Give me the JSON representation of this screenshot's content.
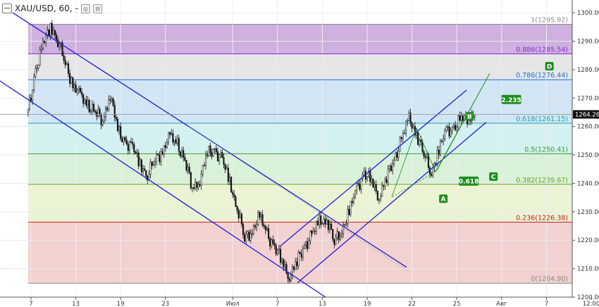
{
  "header": {
    "symbol": "XAU/USD, 60,",
    "dash": "-",
    "btn1": "◎",
    "btn2": "⊟"
  },
  "chart_data": {
    "type": "candlestick",
    "symbol": "XAU/USD",
    "timeframe": "60",
    "ylim": [
      1200,
      1302
    ],
    "y_ticks": [
      1200,
      1210,
      1220,
      1230,
      1240,
      1250,
      1260,
      1270,
      1280,
      1290,
      1300
    ],
    "x_ticks": [
      {
        "label": "7",
        "idx": 0
      },
      {
        "label": "13",
        "idx": 6
      },
      {
        "label": "19",
        "idx": 12
      },
      {
        "label": "23",
        "idx": 18
      },
      {
        "label": "Июл",
        "idx": 27
      },
      {
        "label": "7",
        "idx": 33
      },
      {
        "label": "13",
        "idx": 39
      },
      {
        "label": "19",
        "idx": 45
      },
      {
        "label": "22",
        "idx": 51
      },
      {
        "label": "25",
        "idx": 57
      },
      {
        "label": "Авг",
        "idx": 63
      },
      {
        "label": "7",
        "idx": 69
      },
      {
        "label": "12:00",
        "idx": 75
      }
    ],
    "current_price": "1264.26",
    "fib_levels": [
      {
        "label": "1(1295.92)",
        "value": 1295.92,
        "color": "#8a8a8a"
      },
      {
        "label": "0.886(1285.54)",
        "value": 1285.54,
        "color": "#8a2be2"
      },
      {
        "label": "0.786(1276.44)",
        "value": 1276.44,
        "color": "#1f6fd6"
      },
      {
        "label": "0.618(1261.15)",
        "value": 1261.15,
        "color": "#15a6b8"
      },
      {
        "label": "0.5(1250.41)",
        "value": 1250.41,
        "color": "#2fa12f"
      },
      {
        "label": "0.382(1239.67)",
        "value": 1239.67,
        "color": "#6aa31d"
      },
      {
        "label": "0.236(1226.38)",
        "value": 1226.38,
        "color": "#c81e1e"
      },
      {
        "label": "0(1204.90)",
        "value": 1204.9,
        "color": "#8a8a8a"
      }
    ],
    "fib_zones": [
      {
        "from": 1285.54,
        "to": 1295.92,
        "color": "#c6a3d9"
      },
      {
        "from": 1276.44,
        "to": 1285.54,
        "color": "#e2e2e2"
      },
      {
        "from": 1261.15,
        "to": 1276.44,
        "color": "#c9e1f2"
      },
      {
        "from": 1250.41,
        "to": 1261.15,
        "color": "#cdeeee"
      },
      {
        "from": 1239.67,
        "to": 1250.41,
        "color": "#d4efd2"
      },
      {
        "from": 1226.38,
        "to": 1239.67,
        "color": "#e6f2cc"
      },
      {
        "from": 1204.9,
        "to": 1226.38,
        "color": "#f1c9c9"
      }
    ],
    "wave_labels": [
      {
        "label": "A",
        "idx": 55.2,
        "price": 1234.6
      },
      {
        "label": "B",
        "idx": 58.7,
        "price": 1263.6
      },
      {
        "label": "C",
        "idx": 61.9,
        "price": 1242.4
      },
      {
        "label": "D",
        "idx": 69.4,
        "price": 1281.2
      }
    ],
    "ratio_labels": [
      {
        "label": "0.618",
        "idx": 58.6,
        "price": 1240.8
      },
      {
        "label": "2.235",
        "idx": 64.3,
        "price": 1269.5
      }
    ],
    "close_series": [
      1265,
      1280,
      1288,
      1296,
      1290,
      1282,
      1275,
      1270,
      1268,
      1265,
      1262,
      1272,
      1258,
      1255,
      1252,
      1247,
      1243,
      1248,
      1252,
      1256,
      1254,
      1248,
      1238,
      1242,
      1250,
      1252,
      1248,
      1240,
      1232,
      1220,
      1224,
      1228,
      1222,
      1218,
      1212,
      1208,
      1212,
      1218,
      1222,
      1226,
      1228,
      1219,
      1224,
      1230,
      1238,
      1244,
      1240,
      1236,
      1242,
      1248,
      1256,
      1262,
      1258,
      1250,
      1244,
      1252,
      1258,
      1260,
      1262,
      1264
    ]
  }
}
